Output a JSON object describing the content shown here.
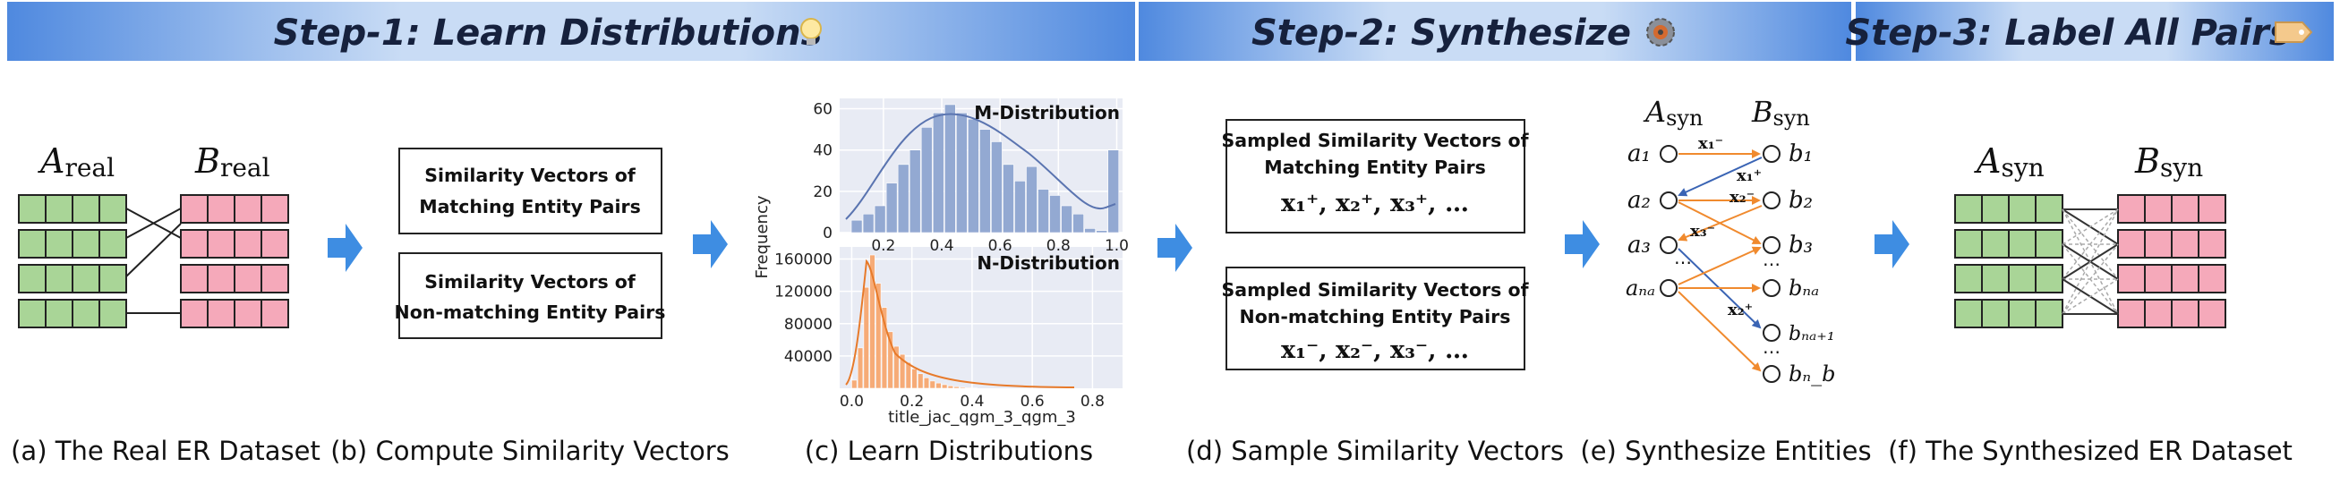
{
  "steps": [
    {
      "label": "Step-1: Learn Distributions",
      "icon": "lightbulb-icon"
    },
    {
      "label": "Step-2: Synthesize",
      "icon": "gear-icon"
    },
    {
      "label": "Step-3: Label All Pairs",
      "icon": "tag-icon"
    }
  ],
  "captions": {
    "a": "(a) The Real ER Dataset",
    "b": "(b) Compute Similarity Vectors",
    "c": "(c) Learn Distributions",
    "d": "(d) Sample Similarity Vectors",
    "e": "(e) Synthesize Entities",
    "f": "(f) The Synthesized ER Dataset"
  },
  "panel_a": {
    "table_a": "A",
    "table_a_sub": "real",
    "table_b": "B",
    "table_b_sub": "real"
  },
  "panel_b": {
    "box1_line1": "Similarity Vectors of",
    "box1_line2": "Matching Entity Pairs",
    "box2_line1": "Similarity Vectors of",
    "box2_line2": "Non-matching Entity Pairs"
  },
  "panel_c": {
    "m_title": "M-Distribution",
    "n_title": "N-Distribution",
    "ylabel": "Frequency",
    "xlabel": "title_jac_qgm_3_qgm_3",
    "m_yticks": [
      "60",
      "40",
      "20",
      "0"
    ],
    "m_xticks": [
      "0.2",
      "0.4",
      "0.6",
      "0.8",
      "1.0"
    ],
    "n_yticks": [
      "160000",
      "120000",
      "80000",
      "40000"
    ],
    "n_xticks": [
      "0.0",
      "0.2",
      "0.4",
      "0.6",
      "0.8"
    ]
  },
  "panel_d": {
    "box1_line1": "Sampled Similarity Vectors of",
    "box1_line2": "Matching Entity Pairs",
    "box1_vectors": "x₁⁺, x₂⁺, x₃⁺, …",
    "box2_line1": "Sampled Similarity Vectors of",
    "box2_line2": "Non-matching Entity Pairs",
    "box2_vectors": "x₁⁻, x₂⁻, x₃⁻, …"
  },
  "panel_e": {
    "left_header": "A",
    "left_header_sub": "syn",
    "right_header": "B",
    "right_header_sub": "syn",
    "left_nodes": [
      "a₁",
      "a₂",
      "a₃",
      "⋯",
      "aₙₐ"
    ],
    "right_nodes": [
      "b₁",
      "b₂",
      "b₃",
      "⋯",
      "bₙₐ",
      "bₙₐ₊₁",
      "⋯",
      "bₙ_b"
    ],
    "edge_labels": [
      "x₁⁻",
      "x₁⁺",
      "x₂⁻",
      "x₃⁻",
      "x₂⁺"
    ]
  },
  "panel_f": {
    "table_a": "A",
    "table_a_sub": "syn",
    "table_b": "B",
    "table_b_sub": "syn"
  },
  "colors": {
    "header_bg": "#5f95e0",
    "arrow": "#3e8de2",
    "table_green": "#a9d597",
    "table_pink": "#f5a9ba",
    "m_bar": "#93a9d2",
    "n_bar": "#f6ab77",
    "plot_bg": "#e8ebf4",
    "edge_orange": "#f08a2e",
    "edge_blue": "#3a64b4"
  },
  "chart_data": [
    {
      "type": "bar",
      "title": "M-Distribution",
      "ylabel": "Frequency",
      "ylim": [
        0,
        65
      ],
      "xlim": [
        0.05,
        1.02
      ],
      "x": [
        0.11,
        0.15,
        0.19,
        0.23,
        0.27,
        0.31,
        0.35,
        0.39,
        0.43,
        0.47,
        0.51,
        0.55,
        0.59,
        0.63,
        0.67,
        0.71,
        0.75,
        0.79,
        0.83,
        0.87,
        0.91,
        0.95,
        0.99
      ],
      "values": [
        6,
        9,
        13,
        24,
        33,
        40,
        51,
        58,
        62,
        58,
        55,
        50,
        44,
        33,
        25,
        32,
        21,
        18,
        13,
        9,
        2,
        1,
        40
      ]
    },
    {
      "type": "bar",
      "title": "N-Distribution",
      "xlabel": "title_jac_qgm_3_qgm_3",
      "ylabel": "Frequency",
      "ylim": [
        0,
        175000
      ],
      "xlim": [
        -0.04,
        0.9
      ],
      "x": [
        0.01,
        0.03,
        0.05,
        0.07,
        0.09,
        0.11,
        0.13,
        0.15,
        0.17,
        0.19,
        0.21,
        0.23,
        0.25,
        0.27,
        0.29,
        0.31,
        0.33,
        0.35,
        0.37,
        0.39,
        0.41
      ],
      "values": [
        10000,
        50000,
        125000,
        165000,
        130000,
        100000,
        70000,
        52000,
        42000,
        32000,
        24000,
        18000,
        13000,
        9000,
        6500,
        4500,
        3000,
        2000,
        1200,
        800,
        400
      ]
    }
  ]
}
